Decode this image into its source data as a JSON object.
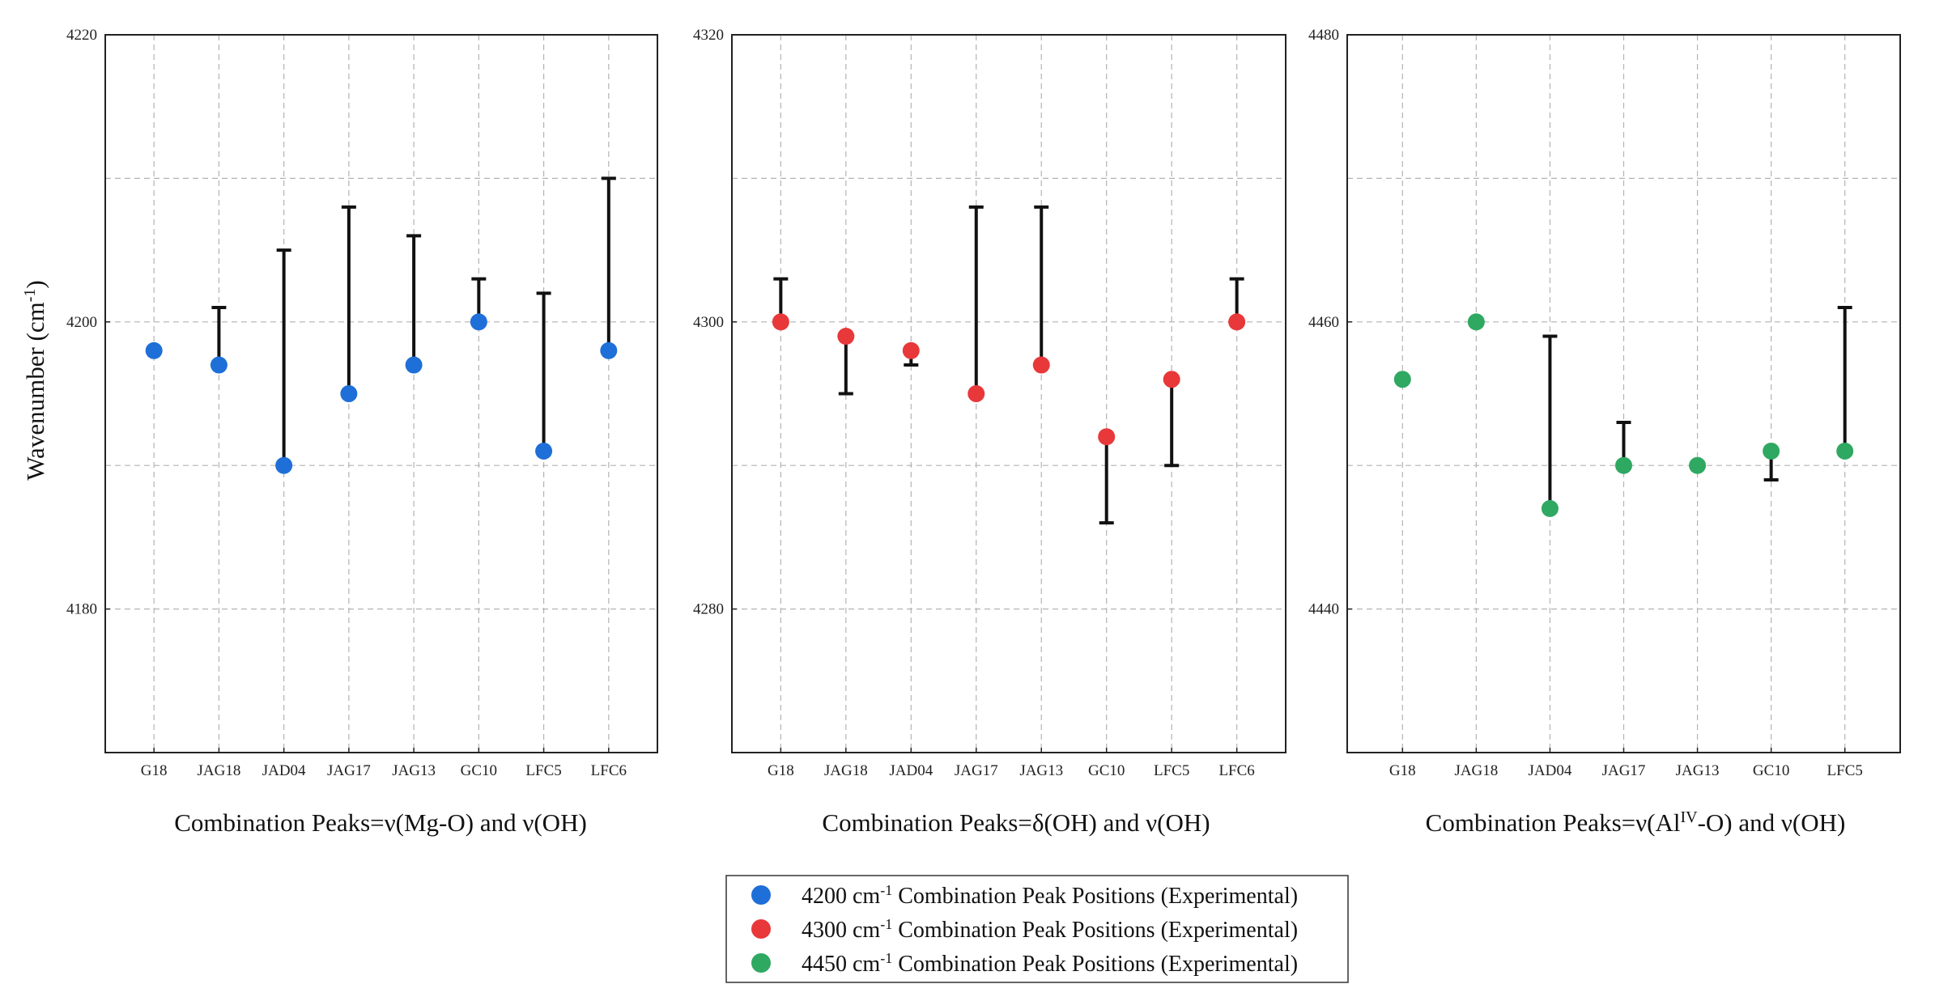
{
  "chart_data": [
    {
      "type": "scatter",
      "title": "",
      "xlabel": "Combination Peaks=ν(Mg-O) and ν(OH)",
      "ylabel": "Wavenumber (cm⁻¹)",
      "ylim": [
        4170,
        4220
      ],
      "yticks": [
        4180,
        4200,
        4220
      ],
      "grid": true,
      "categories": [
        "G18",
        "JAG18",
        "JAD04",
        "JAG17",
        "JAG13",
        "GC10",
        "LFC5",
        "LFC6"
      ],
      "color": "#1f6fd8",
      "series": [
        {
          "name": "4200 cm-1 Combination Peak Positions (Experimental)",
          "values": [
            4198,
            4197,
            4190,
            4195,
            4197,
            4200,
            4191,
            4198
          ],
          "error_high": [
            null,
            4201,
            4205,
            4208,
            4206,
            4203,
            4202,
            4210
          ],
          "error_low": [
            null,
            null,
            null,
            null,
            null,
            null,
            null,
            null
          ]
        }
      ]
    },
    {
      "type": "scatter",
      "title": "",
      "xlabel": "Combination Peaks=δ(OH) and ν(OH)",
      "ylabel": "",
      "ylim": [
        4270,
        4320
      ],
      "yticks": [
        4280,
        4300,
        4320
      ],
      "grid": true,
      "categories": [
        "G18",
        "JAG18",
        "JAD04",
        "JAG17",
        "JAG13",
        "GC10",
        "LFC5",
        "LFC6"
      ],
      "color": "#e8383a",
      "series": [
        {
          "name": "4300 cm-1 Combination Peak Positions (Experimental)",
          "values": [
            4300,
            4299,
            4298,
            4295,
            4297,
            4292,
            4296,
            4300
          ],
          "error_high": [
            4303,
            null,
            null,
            4308,
            4308,
            null,
            null,
            4303
          ],
          "error_low": [
            null,
            4295,
            4297,
            null,
            null,
            4286,
            4290,
            null
          ]
        }
      ]
    },
    {
      "type": "scatter",
      "title": "",
      "xlabel_main": "Combination Peaks=ν(Al",
      "xlabel_sup": "IV",
      "xlabel_rest": "-O) and ν(OH)",
      "ylabel": "",
      "ylim": [
        4430,
        4480
      ],
      "yticks": [
        4440,
        4460,
        4480
      ],
      "grid": true,
      "categories": [
        "G18",
        "JAG18",
        "JAD04",
        "JAG17",
        "JAG13",
        "GC10",
        "LFC5"
      ],
      "color": "#2fa862",
      "series": [
        {
          "name": "4450 cm-1 Combination Peak Positions (Experimental)",
          "values": [
            4456,
            4460,
            4447,
            4450,
            4450,
            4451,
            4451
          ],
          "error_high": [
            null,
            null,
            4459,
            4453,
            null,
            null,
            4461
          ],
          "error_low": [
            null,
            null,
            null,
            null,
            null,
            4449,
            null
          ]
        }
      ]
    }
  ],
  "legend": {
    "placement": "bottom-center",
    "entries": [
      {
        "prefix": "4200 cm",
        "sup": "-1",
        "suffix": " Combination Peak Positions (Experimental)",
        "color": "#1f6fd8"
      },
      {
        "prefix": "4300 cm",
        "sup": "-1",
        "suffix": " Combination Peak Positions (Experimental)",
        "color": "#e8383a"
      },
      {
        "prefix": "4450 cm",
        "sup": "-1",
        "suffix": " Combination Peak Positions (Experimental)",
        "color": "#2fa862"
      }
    ]
  },
  "ylabel_main": "Wavenumber (cm",
  "ylabel_sup": "-1",
  "ylabel_end": ")"
}
